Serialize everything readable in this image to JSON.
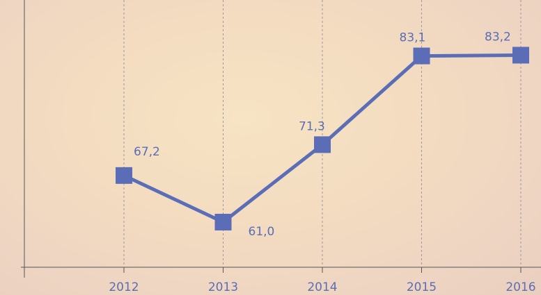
{
  "chart_data": {
    "type": "line",
    "categories": [
      "2012",
      "2013",
      "2014",
      "2015",
      "2016"
    ],
    "series": [
      {
        "color": "#5a6db6",
        "values": [
          67.2,
          61.0,
          71.3,
          83.1,
          83.2
        ],
        "value_labels": [
          "67,2",
          "61,0",
          "71,3",
          "83,1",
          "83,2"
        ]
      }
    ],
    "ylim": [
      55,
      85
    ],
    "grid": true
  }
}
